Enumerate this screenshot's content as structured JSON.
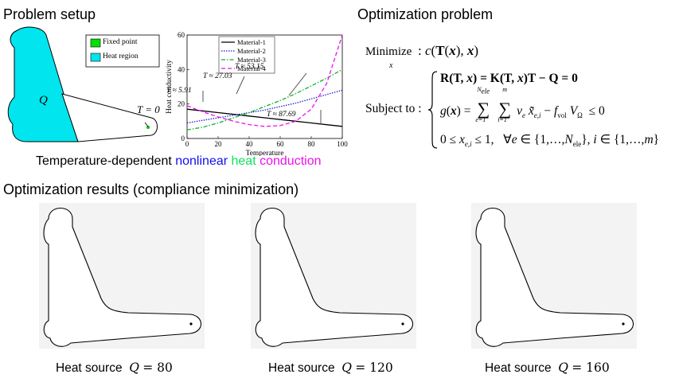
{
  "sections": {
    "setup_title": "Problem setup",
    "optimization_title": "Optimization problem",
    "results_title": "Optimization results (compliance minimization)"
  },
  "setup": {
    "legend": [
      {
        "label": "Fixed point",
        "color": "#00e000"
      },
      {
        "label": "Heat region",
        "color": "#00e5ee"
      }
    ],
    "region_label": "Q",
    "boundary_label": "T = 0",
    "heat_region_color": "#00e5ee",
    "subtitle_parts": [
      {
        "text": "Temperature-dependent ",
        "color": "#000000"
      },
      {
        "text": "nonlinear",
        "color": "#1010ee"
      },
      {
        "text": " heat",
        "color": "#10e060"
      },
      {
        "text": " conduction",
        "color": "#ee10ee"
      }
    ]
  },
  "chart_data": {
    "type": "line",
    "title": "",
    "xlabel": "Temperature",
    "ylabel": "Heat conductivity",
    "xlim": [
      0,
      100
    ],
    "ylim": [
      0,
      60
    ],
    "xticks": [
      0,
      20,
      40,
      60,
      80,
      100
    ],
    "yticks": [
      0,
      20,
      40,
      60
    ],
    "legend_position": "top-left",
    "x": [
      0,
      10,
      20,
      30,
      40,
      50,
      60,
      70,
      80,
      90,
      100
    ],
    "series": [
      {
        "name": "Material-1",
        "color": "#000000",
        "dash": "solid",
        "values": [
          17,
          16,
          15,
          14,
          13,
          12,
          11,
          10,
          9,
          8,
          7
        ]
      },
      {
        "name": "Material-2",
        "color": "#2020d0",
        "dash": "dotted",
        "values": [
          9,
          10.5,
          12,
          13.5,
          15,
          16.5,
          18.5,
          20.5,
          23,
          25.5,
          28
        ]
      },
      {
        "name": "Material-3",
        "color": "#10b030",
        "dash": "dashdot",
        "values": [
          5,
          6.5,
          9,
          12,
          15,
          18.5,
          22,
          26,
          30.5,
          35,
          40
        ]
      },
      {
        "name": "Material-4",
        "color": "#ee10ee",
        "dash": "dashed",
        "values": [
          19,
          15.5,
          12.5,
          10,
          8,
          7,
          7.5,
          10,
          17,
          32,
          62
        ]
      }
    ],
    "annotations": [
      {
        "text": "T ≈ 5.91",
        "x": 5.91
      },
      {
        "text": "T ≈ 27.03",
        "x": 27.03
      },
      {
        "text": "T ≈ 53.15",
        "x": 53.15
      },
      {
        "text": "T ≈ 87.69",
        "x": 87.69
      }
    ]
  },
  "optimization": {
    "objective_label": "Minimize",
    "objective_var": "x",
    "objective_expr": "c(T(x), x)",
    "subject_to_label": "Subject to :",
    "constraints": [
      "R(T, x) = K(T, x)T − Q = 0",
      "g(x) = Σ_{e=1}^{N_ele} Σ_{i=1}^{m} v_e x̃̃_{e,i} − f_vol V_Ω ≤ 0",
      "0 ≤ x_{e,i} ≤ 1,  ∀e ∈ {1,…,N_ele}, i ∈ {1,…,m}"
    ]
  },
  "results": [
    {
      "caption_prefix": "Heat source",
      "symbol": "Q",
      "value": "80"
    },
    {
      "caption_prefix": "Heat source",
      "symbol": "Q",
      "value": "120"
    },
    {
      "caption_prefix": "Heat source",
      "symbol": "Q",
      "value": "160"
    }
  ]
}
